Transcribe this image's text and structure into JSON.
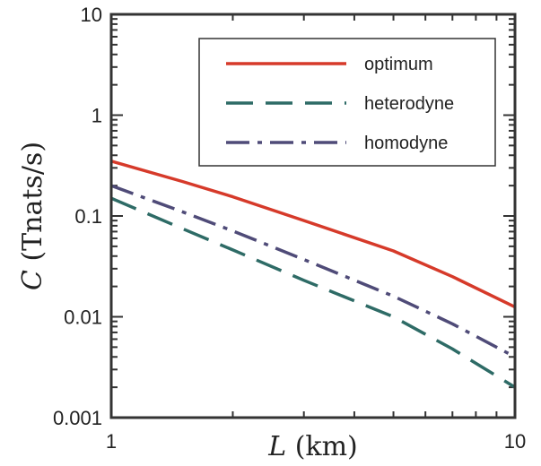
{
  "chart_data": {
    "type": "line",
    "xscale": "log",
    "yscale": "log",
    "xlim": [
      1,
      10
    ],
    "ylim": [
      0.001,
      10
    ],
    "xticks": [
      {
        "value": 1,
        "label": "1"
      },
      {
        "value": 10,
        "label": "10"
      }
    ],
    "yticks": [
      {
        "value": 0.001,
        "label": "0.001"
      },
      {
        "value": 0.01,
        "label": "0.01"
      },
      {
        "value": 0.1,
        "label": "0.1"
      },
      {
        "value": 1,
        "label": "1"
      },
      {
        "value": 10,
        "label": "10"
      }
    ],
    "xlabel": {
      "var": "L",
      "unit": " (km)"
    },
    "ylabel": {
      "var": "C",
      "unit": " (Tnats/s)"
    },
    "grid": false,
    "legend_position": "top-right",
    "series": [
      {
        "name": "optimum",
        "color": "#d63a2a",
        "dash": "solid",
        "points": [
          [
            1,
            0.35
          ],
          [
            1.5,
            0.22
          ],
          [
            2,
            0.155
          ],
          [
            3,
            0.09
          ],
          [
            5,
            0.045
          ],
          [
            7,
            0.025
          ],
          [
            10,
            0.0125
          ]
        ]
      },
      {
        "name": "heterodyne",
        "color": "#2e6b66",
        "dash": "dashed",
        "points": [
          [
            1,
            0.15
          ],
          [
            1.5,
            0.075
          ],
          [
            2,
            0.046
          ],
          [
            3,
            0.023
          ],
          [
            5,
            0.01
          ],
          [
            7,
            0.0048
          ],
          [
            10,
            0.002
          ]
        ]
      },
      {
        "name": "homodyne",
        "color": "#4f4b78",
        "dash": "dashdot",
        "points": [
          [
            1,
            0.2
          ],
          [
            1.5,
            0.11
          ],
          [
            2,
            0.071
          ],
          [
            3,
            0.037
          ],
          [
            5,
            0.016
          ],
          [
            7,
            0.0085
          ],
          [
            10,
            0.004
          ]
        ]
      }
    ]
  }
}
